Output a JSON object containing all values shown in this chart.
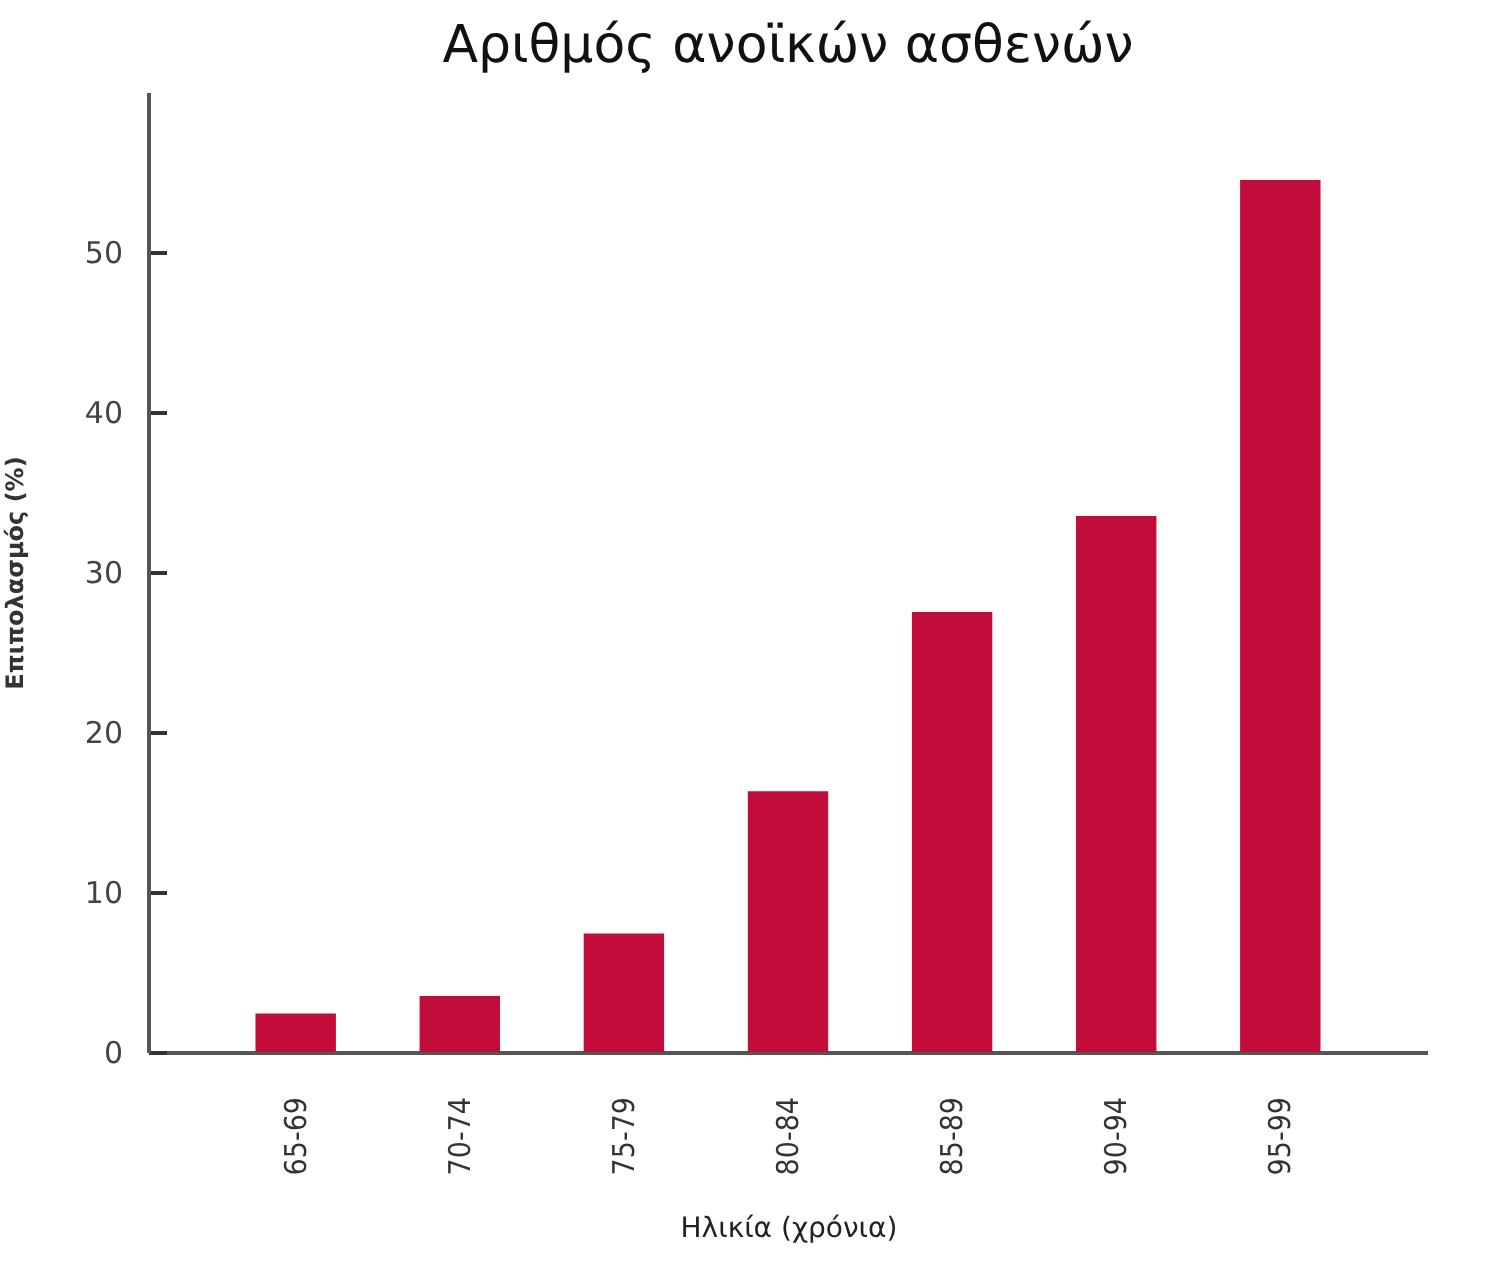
{
  "chart_data": {
    "type": "bar",
    "title": "Αριθμός ανοϊκών ασθενών",
    "xlabel": "Ηλικία (χρόνια)",
    "ylabel": "Επιπολασμός (%)",
    "categories": [
      "65-69",
      "70-74",
      "75-79",
      "80-84",
      "85-89",
      "90-94",
      "95-99"
    ],
    "values": [
      2.4,
      3.5,
      7.4,
      16.3,
      27.5,
      33.5,
      54.5
    ],
    "color": "#c20c3a",
    "ylim": [
      0,
      60
    ],
    "yticks": [
      0,
      10,
      20,
      30,
      40,
      50
    ],
    "grid": false
  }
}
